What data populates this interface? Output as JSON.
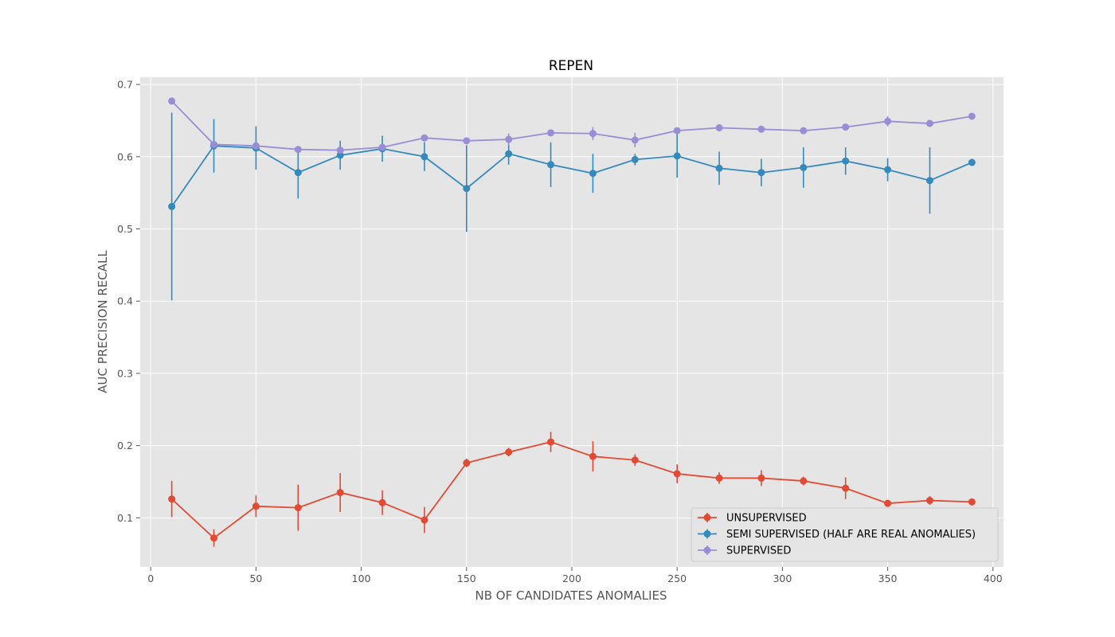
{
  "chart_data": {
    "type": "line",
    "title": "REPEN",
    "xlabel": "NB OF CANDIDATES ANOMALIES",
    "ylabel": "AUC PRECISION RECALL",
    "xlim": [
      -5,
      405
    ],
    "ylim": [
      0.032,
      0.71
    ],
    "xticks": [
      0,
      50,
      100,
      150,
      200,
      250,
      300,
      350,
      400
    ],
    "yticks": [
      0.1,
      0.2,
      0.3,
      0.4,
      0.5,
      0.6,
      0.7
    ],
    "xtick_labels": [
      "0",
      "50",
      "100",
      "150",
      "200",
      "250",
      "300",
      "350",
      "400"
    ],
    "ytick_labels": [
      "0.1",
      "0.2",
      "0.3",
      "0.4",
      "0.5",
      "0.6",
      "0.7"
    ],
    "grid": true,
    "legend_position": "lower-right",
    "x": [
      10,
      30,
      50,
      70,
      90,
      110,
      130,
      150,
      170,
      190,
      210,
      230,
      250,
      270,
      290,
      310,
      330,
      350,
      370,
      390
    ],
    "series": [
      {
        "name": "UNSUPERVISED",
        "color": "#E24A33",
        "values": [
          0.126,
          0.072,
          0.116,
          0.114,
          0.135,
          0.121,
          0.097,
          0.176,
          0.191,
          0.205,
          0.185,
          0.18,
          0.161,
          0.155,
          0.155,
          0.151,
          0.141,
          0.12,
          0.124,
          0.122
        ],
        "errors": [
          0.025,
          0.012,
          0.015,
          0.032,
          0.027,
          0.017,
          0.018,
          0.006,
          0.006,
          0.014,
          0.021,
          0.008,
          0.013,
          0.008,
          0.011,
          0.006,
          0.015,
          0.005,
          0.006,
          0.004
        ]
      },
      {
        "name": "SEMI SUPERVISED (HALF ARE REAL ANOMALIES)",
        "color": "#348ABD",
        "values": [
          0.531,
          0.615,
          0.612,
          0.578,
          0.602,
          0.611,
          0.6,
          0.556,
          0.604,
          0.589,
          0.577,
          0.596,
          0.601,
          0.584,
          0.578,
          0.585,
          0.594,
          0.582,
          0.567,
          0.592
        ],
        "errors": [
          0.13,
          0.037,
          0.03,
          0.036,
          0.02,
          0.018,
          0.02,
          0.06,
          0.015,
          0.031,
          0.027,
          0.008,
          0.03,
          0.023,
          0.019,
          0.028,
          0.019,
          0.016,
          0.046,
          0.004
        ]
      },
      {
        "name": "SUPERVISED",
        "color": "#988ED5",
        "values": [
          0.677,
          0.617,
          0.615,
          0.61,
          0.609,
          0.613,
          0.626,
          0.622,
          0.624,
          0.633,
          0.632,
          0.623,
          0.636,
          0.64,
          0.638,
          0.636,
          0.641,
          0.649,
          0.646,
          0.656
        ],
        "errors": [
          0.004,
          0.004,
          0.004,
          0.004,
          0.004,
          0.004,
          0.005,
          0.004,
          0.008,
          0.004,
          0.009,
          0.01,
          0.004,
          0.005,
          0.004,
          0.003,
          0.004,
          0.007,
          0.004,
          0.004
        ]
      }
    ]
  }
}
